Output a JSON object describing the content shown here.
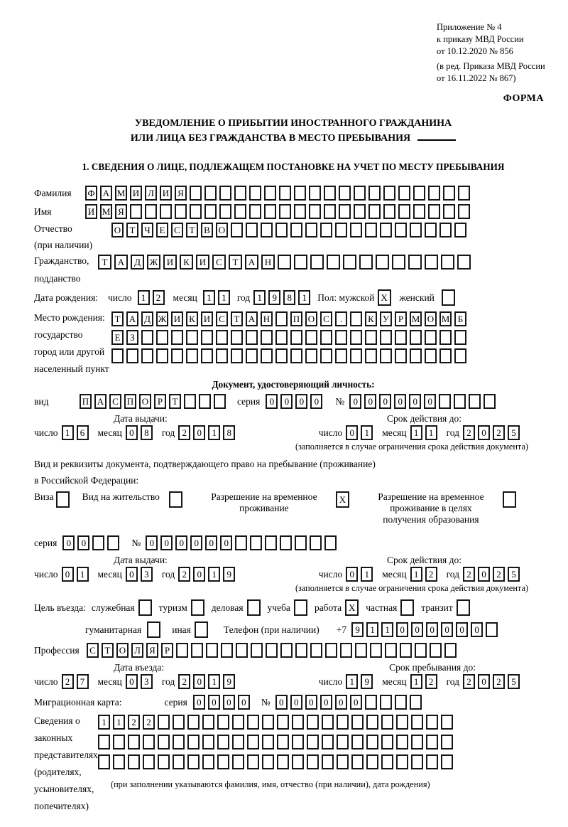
{
  "misc": {
    "day": "число",
    "month": "месяц",
    "year": "год",
    "series": "серия",
    "no": "№",
    "restriction_note": "(заполняется в случае ограничения срока действия документа)"
  },
  "header": {
    "annex": [
      "Приложение № 4",
      "к приказу МВД России",
      "от 10.12.2020 № 856"
    ],
    "amendment": [
      "(в ред. Приказа МВД России",
      "от 16.11.2022 № 867)"
    ],
    "forma": "ФОРМА"
  },
  "title": {
    "line1": "УВЕДОМЛЕНИЕ О ПРИБЫТИИ ИНОСТРАННОГО ГРАЖДАНИНА",
    "line2": "ИЛИ ЛИЦА БЕЗ ГРАЖДАНСТВА В МЕСТО ПРЕБЫВАНИЯ"
  },
  "section1": {
    "heading": "1. СВЕДЕНИЯ О ЛИЦЕ, ПОДЛЕЖАЩЕМ ПОСТАНОВКЕ НА УЧЕТ ПО МЕСТУ ПРЕБЫВАНИЯ"
  },
  "surname": {
    "label": "Фамилия",
    "cells": {
      "v": "ФАМИЛИЯ",
      "n": 26
    }
  },
  "firstname": {
    "label": "Имя",
    "cells": {
      "v": "ИМЯ",
      "n": 26
    }
  },
  "patronymic": {
    "label1": "Отчество",
    "label2": "(при наличии)",
    "cells": {
      "v": "ОТЧЕСТВО",
      "n": 24
    }
  },
  "citizenship": {
    "label1": "Гражданство,",
    "label2": "подданство",
    "cells": {
      "v": "ТАДЖИКИСТАН",
      "n": 23
    }
  },
  "birth": {
    "label": "Дата рождения:",
    "day": {
      "v": "12",
      "n": 2
    },
    "month": {
      "v": "11",
      "n": 2
    },
    "year": {
      "v": "1981",
      "n": 4
    },
    "sex_label": "Пол: мужской",
    "male": {
      "v": "X",
      "n": 1
    },
    "female_label": "женский",
    "female": {
      "v": "",
      "n": 1
    }
  },
  "birthplace": {
    "label_lines": [
      "Место рождения:",
      "государство",
      "город или другой",
      "населенный пункт"
    ],
    "row1": {
      "v": "ТАДЖИКИСТАН ПОС. КУРМОМБ",
      "n": 24
    },
    "row2": {
      "v": "ЕЗ",
      "n": 24
    },
    "row3": {
      "v": "",
      "n": 24
    }
  },
  "identity_doc": {
    "heading": "Документ, удостоверяющий личность:",
    "type_label": "вид",
    "type": {
      "v": "ПАСПОРТ",
      "n": 10
    },
    "series": {
      "v": "0000",
      "n": 4
    },
    "number": {
      "v": "000000",
      "n": 10
    },
    "issue_title": "Дата выдачи:",
    "issue_day": {
      "v": "16",
      "n": 2
    },
    "issue_month": {
      "v": "08",
      "n": 2
    },
    "issue_year": {
      "v": "2018",
      "n": 4
    },
    "valid_title": "Срок действия до:",
    "valid_day": {
      "v": "01",
      "n": 2
    },
    "valid_month": {
      "v": "11",
      "n": 2
    },
    "valid_year": {
      "v": "2025",
      "n": 4
    }
  },
  "residence_doc": {
    "line1": "Вид и реквизиты документа, подтверждающего право на пребывание (проживание)",
    "line2": "в Российской Федерации:",
    "visa": {
      "label": "Виза",
      "box": {
        "v": "",
        "n": 1
      }
    },
    "permit": {
      "label": "Вид на жительство",
      "box": {
        "v": "",
        "n": 1
      }
    },
    "rvp": {
      "lines": [
        "Разрешение на временное",
        "проживание"
      ],
      "box": {
        "v": "X",
        "n": 1
      }
    },
    "rvp_edu": {
      "lines": [
        "Разрешение на временное",
        "проживание в целях",
        "получения образования"
      ],
      "box": {
        "v": "",
        "n": 1
      }
    },
    "series": {
      "v": "00",
      "n": 4
    },
    "number": {
      "v": "000000",
      "n": 13
    },
    "issue_title": "Дата выдачи:",
    "issue_day": {
      "v": "01",
      "n": 2
    },
    "issue_month": {
      "v": "03",
      "n": 2
    },
    "issue_year": {
      "v": "2019",
      "n": 4
    },
    "valid_title": "Срок действия до:",
    "valid_day": {
      "v": "01",
      "n": 2
    },
    "valid_month": {
      "v": "12",
      "n": 2
    },
    "valid_year": {
      "v": "2025",
      "n": 4
    }
  },
  "purpose": {
    "label": "Цель въезда:",
    "options_row1": [
      {
        "label": "служебная",
        "box": {
          "v": "",
          "n": 1
        }
      },
      {
        "label": "туризм",
        "box": {
          "v": "",
          "n": 1
        }
      },
      {
        "label": "деловая",
        "box": {
          "v": "",
          "n": 1
        }
      },
      {
        "label": "учеба",
        "box": {
          "v": "",
          "n": 1
        }
      },
      {
        "label": "работа",
        "box": {
          "v": "X",
          "n": 1
        }
      },
      {
        "label": "частная",
        "box": {
          "v": "",
          "n": 1
        }
      },
      {
        "label": "транзит",
        "box": {
          "v": "",
          "n": 1
        }
      }
    ],
    "options_row2": [
      {
        "label": "гуманитарная",
        "box": {
          "v": "",
          "n": 1
        }
      },
      {
        "label": "иная",
        "box": {
          "v": "",
          "n": 1
        }
      }
    ],
    "phone_label": "Телефон (при наличии)",
    "phone_prefix": "+7",
    "phone": {
      "v": "911000000",
      "n": 10
    }
  },
  "profession": {
    "label": "Профессия",
    "cells": {
      "v": "СТОЛЯР",
      "n": 25
    }
  },
  "entry": {
    "entry_title": "Дата въезда:",
    "entry_day": {
      "v": "27",
      "n": 2
    },
    "entry_month": {
      "v": "03",
      "n": 2
    },
    "entry_year": {
      "v": "2019",
      "n": 4
    },
    "stay_title": "Срок пребывания до:",
    "stay_day": {
      "v": "19",
      "n": 2
    },
    "stay_month": {
      "v": "12",
      "n": 2
    },
    "stay_year": {
      "v": "2025",
      "n": 4
    }
  },
  "migration_card": {
    "label": "Миграционная карта:",
    "series": {
      "v": "0000",
      "n": 4
    },
    "number": {
      "v": "000000",
      "n": 10
    }
  },
  "representatives": {
    "label_lines": [
      "Сведения о",
      "законных",
      "представителях",
      "(родителях,",
      "усыновителях,",
      "попечителях)"
    ],
    "row1": {
      "v": "1122",
      "n": 24
    },
    "row2": {
      "v": "",
      "n": 24
    },
    "row3": {
      "v": "",
      "n": 24
    },
    "note": "(при заполнении указываются фамилия, имя, отчество (при наличии), дата рождения)"
  }
}
